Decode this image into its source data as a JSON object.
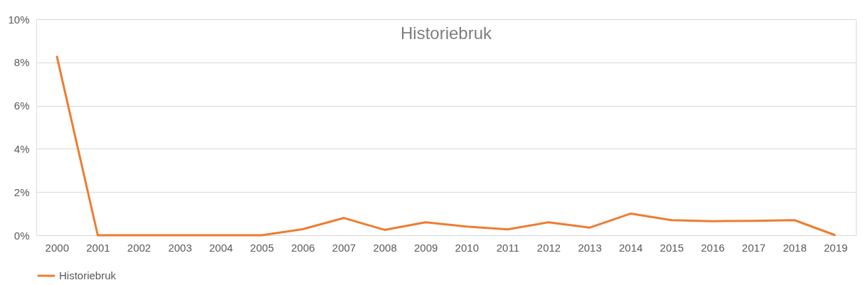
{
  "chart_data": {
    "type": "line",
    "title": "Historiebruk",
    "categories": [
      "2000",
      "2001",
      "2002",
      "2003",
      "2004",
      "2005",
      "2006",
      "2007",
      "2008",
      "2009",
      "2010",
      "2011",
      "2012",
      "2013",
      "2014",
      "2015",
      "2016",
      "2017",
      "2018",
      "2019"
    ],
    "series": [
      {
        "name": "Historiebruk",
        "color": "#ed7d31",
        "values": [
          8.3,
          0,
          0,
          0,
          0,
          0,
          0.28,
          0.8,
          0.25,
          0.6,
          0.4,
          0.27,
          0.6,
          0.35,
          1.0,
          0.7,
          0.65,
          0.67,
          0.7,
          0
        ]
      }
    ],
    "ylim": [
      0,
      10
    ],
    "yticks": [
      {
        "value": 0,
        "label": "0%"
      },
      {
        "value": 2,
        "label": "2%"
      },
      {
        "value": 4,
        "label": "4%"
      },
      {
        "value": 6,
        "label": "6%"
      },
      {
        "value": 8,
        "label": "8%"
      },
      {
        "value": 10,
        "label": "10%"
      }
    ],
    "grid": "y",
    "legend": "bottom",
    "marker": "none",
    "line_style": "solid"
  }
}
